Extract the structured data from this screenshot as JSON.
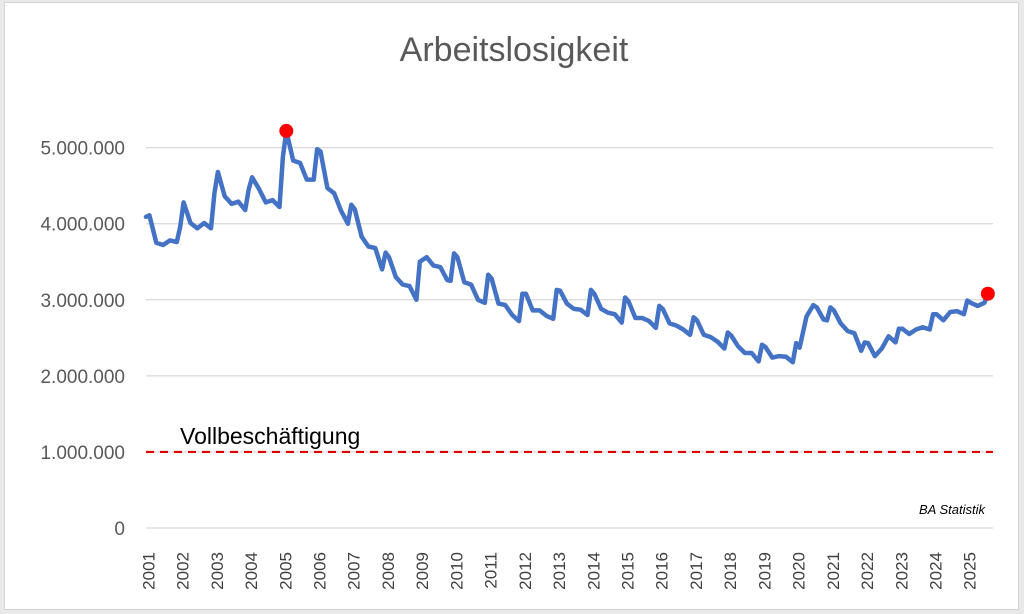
{
  "chart_data": {
    "type": "line",
    "title": "Arbeitslosigkeit",
    "xlabel": "",
    "ylabel": "",
    "ylim": [
      0,
      5600000
    ],
    "xlim": [
      2001,
      2025.75
    ],
    "y_ticks": [
      0,
      1000000,
      2000000,
      3000000,
      4000000,
      5000000
    ],
    "y_tick_labels": [
      "0",
      "1.000.000",
      "2.000.000",
      "3.000.000",
      "4.000.000",
      "5.000.000"
    ],
    "x_tick_labels": [
      "2001",
      "2002",
      "2003",
      "2004",
      "2005",
      "2006",
      "2007",
      "2008",
      "2009",
      "2010",
      "2011",
      "2012",
      "2013",
      "2014",
      "2015",
      "2016",
      "2017",
      "2018",
      "2019",
      "2020",
      "2021",
      "2022",
      "2023",
      "2024",
      "2025"
    ],
    "grid": true,
    "legend": "none",
    "series": [
      {
        "color": "#4472c4",
        "points": [
          [
            2001.0,
            4090000
          ],
          [
            2001.1,
            4110000
          ],
          [
            2001.3,
            3750000
          ],
          [
            2001.5,
            3720000
          ],
          [
            2001.7,
            3780000
          ],
          [
            2001.9,
            3760000
          ],
          [
            2002.0,
            3960000
          ],
          [
            2002.1,
            4280000
          ],
          [
            2002.3,
            4010000
          ],
          [
            2002.5,
            3940000
          ],
          [
            2002.7,
            4010000
          ],
          [
            2002.9,
            3940000
          ],
          [
            2003.0,
            4400000
          ],
          [
            2003.1,
            4680000
          ],
          [
            2003.3,
            4360000
          ],
          [
            2003.5,
            4260000
          ],
          [
            2003.7,
            4290000
          ],
          [
            2003.9,
            4180000
          ],
          [
            2004.0,
            4450000
          ],
          [
            2004.1,
            4610000
          ],
          [
            2004.3,
            4460000
          ],
          [
            2004.5,
            4280000
          ],
          [
            2004.7,
            4310000
          ],
          [
            2004.9,
            4220000
          ],
          [
            2005.0,
            4880000
          ],
          [
            2005.1,
            5220000
          ],
          [
            2005.3,
            4830000
          ],
          [
            2005.5,
            4800000
          ],
          [
            2005.7,
            4580000
          ],
          [
            2005.9,
            4580000
          ],
          [
            2006.0,
            4980000
          ],
          [
            2006.1,
            4950000
          ],
          [
            2006.3,
            4470000
          ],
          [
            2006.5,
            4400000
          ],
          [
            2006.7,
            4170000
          ],
          [
            2006.9,
            4000000
          ],
          [
            2007.0,
            4250000
          ],
          [
            2007.1,
            4190000
          ],
          [
            2007.3,
            3830000
          ],
          [
            2007.5,
            3700000
          ],
          [
            2007.7,
            3680000
          ],
          [
            2007.9,
            3400000
          ],
          [
            2008.0,
            3620000
          ],
          [
            2008.1,
            3560000
          ],
          [
            2008.3,
            3300000
          ],
          [
            2008.5,
            3200000
          ],
          [
            2008.7,
            3180000
          ],
          [
            2008.9,
            3000000
          ],
          [
            2009.0,
            3500000
          ],
          [
            2009.2,
            3560000
          ],
          [
            2009.4,
            3450000
          ],
          [
            2009.6,
            3430000
          ],
          [
            2009.8,
            3260000
          ],
          [
            2009.9,
            3250000
          ],
          [
            2010.0,
            3610000
          ],
          [
            2010.1,
            3560000
          ],
          [
            2010.3,
            3230000
          ],
          [
            2010.5,
            3200000
          ],
          [
            2010.7,
            3000000
          ],
          [
            2010.9,
            2960000
          ],
          [
            2011.0,
            3330000
          ],
          [
            2011.1,
            3280000
          ],
          [
            2011.3,
            2950000
          ],
          [
            2011.5,
            2930000
          ],
          [
            2011.7,
            2800000
          ],
          [
            2011.9,
            2720000
          ],
          [
            2012.0,
            3080000
          ],
          [
            2012.1,
            3080000
          ],
          [
            2012.3,
            2860000
          ],
          [
            2012.5,
            2860000
          ],
          [
            2012.7,
            2790000
          ],
          [
            2012.9,
            2750000
          ],
          [
            2013.0,
            3130000
          ],
          [
            2013.1,
            3120000
          ],
          [
            2013.3,
            2950000
          ],
          [
            2013.5,
            2880000
          ],
          [
            2013.7,
            2870000
          ],
          [
            2013.9,
            2800000
          ],
          [
            2014.0,
            3130000
          ],
          [
            2014.1,
            3080000
          ],
          [
            2014.3,
            2880000
          ],
          [
            2014.5,
            2830000
          ],
          [
            2014.7,
            2810000
          ],
          [
            2014.9,
            2700000
          ],
          [
            2015.0,
            3030000
          ],
          [
            2015.1,
            2980000
          ],
          [
            2015.3,
            2760000
          ],
          [
            2015.5,
            2760000
          ],
          [
            2015.7,
            2720000
          ],
          [
            2015.9,
            2630000
          ],
          [
            2016.0,
            2920000
          ],
          [
            2016.1,
            2880000
          ],
          [
            2016.3,
            2690000
          ],
          [
            2016.5,
            2660000
          ],
          [
            2016.7,
            2610000
          ],
          [
            2016.9,
            2540000
          ],
          [
            2017.0,
            2770000
          ],
          [
            2017.1,
            2730000
          ],
          [
            2017.3,
            2540000
          ],
          [
            2017.5,
            2510000
          ],
          [
            2017.7,
            2450000
          ],
          [
            2017.9,
            2360000
          ],
          [
            2018.0,
            2570000
          ],
          [
            2018.1,
            2530000
          ],
          [
            2018.3,
            2390000
          ],
          [
            2018.5,
            2300000
          ],
          [
            2018.7,
            2300000
          ],
          [
            2018.9,
            2190000
          ],
          [
            2019.0,
            2410000
          ],
          [
            2019.1,
            2380000
          ],
          [
            2019.3,
            2240000
          ],
          [
            2019.5,
            2260000
          ],
          [
            2019.7,
            2250000
          ],
          [
            2019.9,
            2180000
          ],
          [
            2020.0,
            2430000
          ],
          [
            2020.1,
            2370000
          ],
          [
            2020.3,
            2780000
          ],
          [
            2020.5,
            2930000
          ],
          [
            2020.6,
            2900000
          ],
          [
            2020.8,
            2740000
          ],
          [
            2020.9,
            2730000
          ],
          [
            2021.0,
            2900000
          ],
          [
            2021.1,
            2860000
          ],
          [
            2021.3,
            2690000
          ],
          [
            2021.5,
            2590000
          ],
          [
            2021.7,
            2560000
          ],
          [
            2021.9,
            2330000
          ],
          [
            2022.0,
            2440000
          ],
          [
            2022.1,
            2430000
          ],
          [
            2022.3,
            2260000
          ],
          [
            2022.5,
            2360000
          ],
          [
            2022.7,
            2520000
          ],
          [
            2022.9,
            2440000
          ],
          [
            2023.0,
            2620000
          ],
          [
            2023.1,
            2620000
          ],
          [
            2023.3,
            2550000
          ],
          [
            2023.5,
            2610000
          ],
          [
            2023.7,
            2640000
          ],
          [
            2023.9,
            2610000
          ],
          [
            2024.0,
            2810000
          ],
          [
            2024.1,
            2810000
          ],
          [
            2024.3,
            2730000
          ],
          [
            2024.5,
            2840000
          ],
          [
            2024.7,
            2850000
          ],
          [
            2024.9,
            2810000
          ],
          [
            2025.0,
            2990000
          ],
          [
            2025.1,
            2960000
          ],
          [
            2025.3,
            2920000
          ],
          [
            2025.5,
            2960000
          ],
          [
            2025.6,
            3080000
          ]
        ]
      }
    ],
    "highlight_points": [
      {
        "x": 2005.1,
        "y": 5220000,
        "color": "#ff0000"
      },
      {
        "x": 2025.6,
        "y": 3080000,
        "color": "#ff0000"
      }
    ],
    "reference_line": {
      "y": 1000000,
      "color": "#e00000",
      "style": "dashed",
      "label": "Vollbeschäftigung"
    },
    "annotations": [
      {
        "text": "BA Statistik",
        "position": "bottom-right"
      }
    ]
  }
}
